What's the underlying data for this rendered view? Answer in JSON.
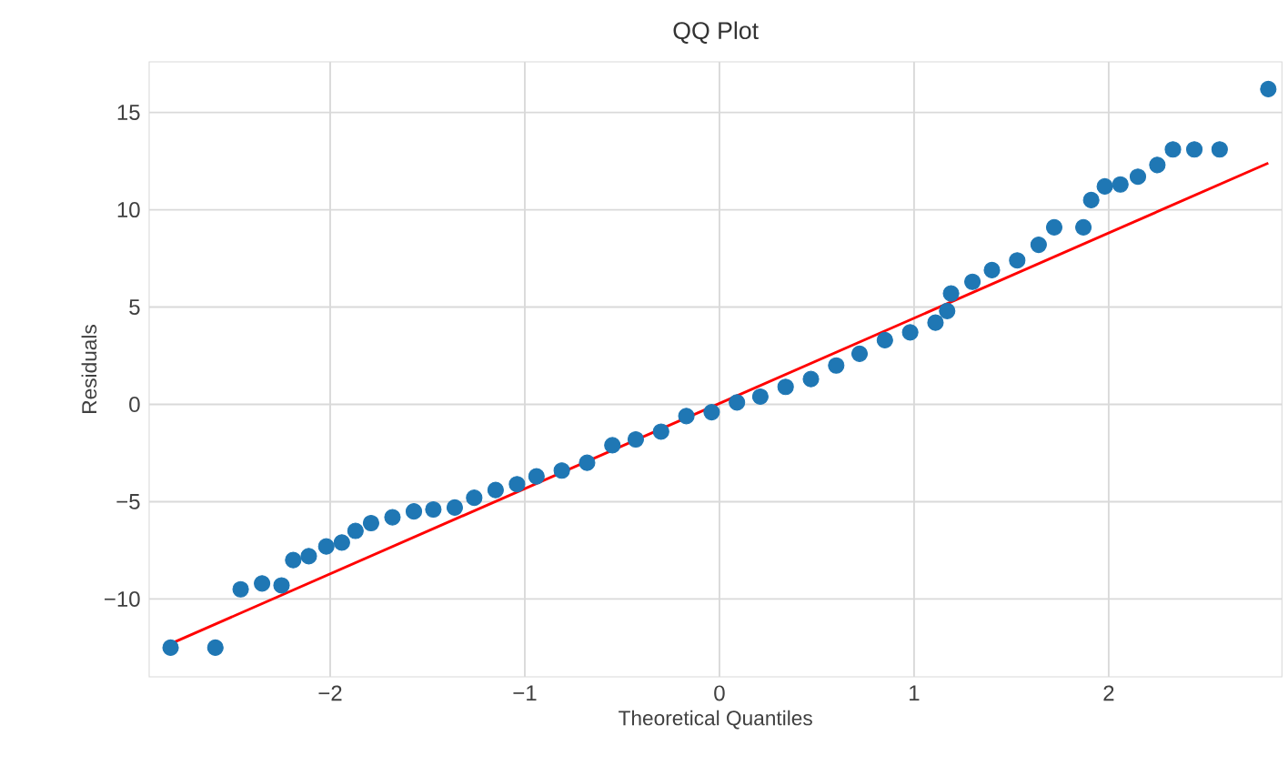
{
  "chart_data": {
    "type": "scatter",
    "title": "QQ Plot",
    "xlabel": "Theoretical Quantiles",
    "ylabel": "Residuals",
    "xlim": [
      -2.93,
      2.89
    ],
    "ylim": [
      -14.0,
      17.6
    ],
    "xticks": [
      {
        "value": -2,
        "label": "−2"
      },
      {
        "value": -1,
        "label": "−1"
      },
      0,
      1,
      2
    ],
    "yticks": [
      {
        "value": -10,
        "label": "−10"
      },
      {
        "value": -5,
        "label": "−5"
      },
      0,
      5,
      10,
      15
    ],
    "grid": true,
    "marker": "circle",
    "series": [
      {
        "color": "#1f77b4",
        "x": [
          -2.82,
          -2.59,
          -2.46,
          -2.35,
          -2.25,
          -2.19,
          -2.11,
          -2.02,
          -1.94,
          -1.87,
          -1.79,
          -1.68,
          -1.57,
          -1.47,
          -1.36,
          -1.26,
          -1.15,
          -1.04,
          -0.94,
          -0.81,
          -0.68,
          -0.55,
          -0.43,
          -0.3,
          -0.17,
          -0.04,
          0.09,
          0.21,
          0.34,
          0.47,
          0.6,
          0.72,
          0.85,
          0.98,
          1.11,
          1.17,
          1.19,
          1.3,
          1.4,
          1.53,
          1.64,
          1.72,
          1.87,
          1.91,
          1.98,
          2.06,
          2.15,
          2.25,
          2.33,
          2.44,
          2.57,
          2.82
        ],
        "values": [
          -12.5,
          -12.5,
          -9.5,
          -9.2,
          -9.3,
          -8.0,
          -7.8,
          -7.3,
          -7.1,
          -6.5,
          -6.1,
          -5.8,
          -5.5,
          -5.4,
          -5.3,
          -4.8,
          -4.4,
          -4.1,
          -3.7,
          -3.4,
          -3.0,
          -2.1,
          -1.8,
          -1.4,
          -0.6,
          -0.4,
          0.1,
          0.4,
          0.9,
          1.3,
          2.0,
          2.6,
          3.3,
          3.7,
          4.2,
          4.8,
          5.7,
          6.3,
          6.9,
          7.4,
          8.2,
          9.1,
          9.1,
          10.5,
          11.2,
          11.3,
          11.7,
          12.3,
          13.1,
          13.1,
          13.1,
          16.2
        ]
      },
      {
        "type": "line",
        "marker": "none",
        "color": "#ff0000",
        "x": [
          -2.82,
          2.82
        ],
        "values": [
          -12.3,
          12.4
        ]
      }
    ]
  }
}
